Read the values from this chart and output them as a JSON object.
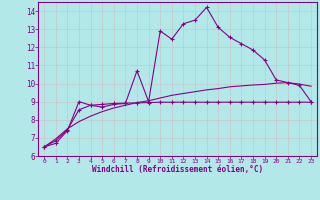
{
  "xlabel": "Windchill (Refroidissement éolien,°C)",
  "background_color": "#b2e8e8",
  "grid_color": "#c8c8c8",
  "line_color": "#880088",
  "xlim": [
    -0.5,
    23.5
  ],
  "ylim": [
    6,
    14.5
  ],
  "yticks": [
    6,
    7,
    8,
    9,
    10,
    11,
    12,
    13,
    14
  ],
  "xticks": [
    0,
    1,
    2,
    3,
    4,
    5,
    6,
    7,
    8,
    9,
    10,
    11,
    12,
    13,
    14,
    15,
    16,
    17,
    18,
    19,
    20,
    21,
    22,
    23
  ],
  "line1_x": [
    0,
    1,
    2,
    3,
    4,
    5,
    6,
    7,
    8,
    9,
    10,
    11,
    12,
    13,
    14,
    15,
    16,
    17,
    18,
    19,
    20,
    21,
    22,
    23
  ],
  "line1_y": [
    6.5,
    6.7,
    7.4,
    9.0,
    8.8,
    8.7,
    8.85,
    8.9,
    10.7,
    9.0,
    12.9,
    12.45,
    13.3,
    13.5,
    14.2,
    13.1,
    12.55,
    12.2,
    11.85,
    11.3,
    10.2,
    10.05,
    9.9,
    9.0
  ],
  "line2_x": [
    0,
    1,
    2,
    3,
    4,
    5,
    6,
    7,
    8,
    9,
    10,
    11,
    12,
    13,
    14,
    15,
    16,
    17,
    18,
    19,
    20,
    21,
    22,
    23
  ],
  "line2_y": [
    6.5,
    6.85,
    7.45,
    8.55,
    8.8,
    8.85,
    8.9,
    8.92,
    8.93,
    8.95,
    8.97,
    8.97,
    8.97,
    8.97,
    8.97,
    8.97,
    8.97,
    8.97,
    8.97,
    8.97,
    8.97,
    8.97,
    8.97,
    8.97
  ],
  "line3_x": [
    0,
    1,
    2,
    3,
    4,
    5,
    6,
    7,
    8,
    9,
    10,
    11,
    12,
    13,
    14,
    15,
    16,
    17,
    18,
    19,
    20,
    21,
    22,
    23
  ],
  "line3_y": [
    6.5,
    6.95,
    7.5,
    7.9,
    8.2,
    8.45,
    8.65,
    8.8,
    8.95,
    9.05,
    9.2,
    9.35,
    9.45,
    9.55,
    9.65,
    9.72,
    9.82,
    9.87,
    9.92,
    9.95,
    10.02,
    10.05,
    9.97,
    9.85
  ]
}
